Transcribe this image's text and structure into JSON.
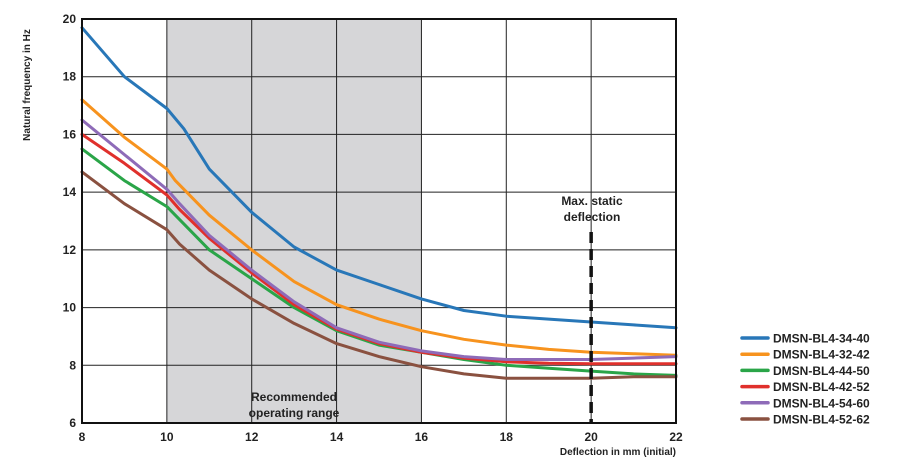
{
  "chart_data": {
    "type": "line",
    "title": "",
    "xlabel": "Deflection in mm (initial)",
    "ylabel": "Natural frequency in Hz",
    "xlim": [
      8,
      22
    ],
    "ylim": [
      6,
      20
    ],
    "x_ticks": [
      8,
      10,
      12,
      14,
      16,
      18,
      20,
      22
    ],
    "y_ticks": [
      6,
      8,
      10,
      12,
      14,
      16,
      18,
      20
    ],
    "x_tick_labels": [
      "8",
      "10",
      "12",
      "14",
      "16",
      "18",
      "20",
      "22"
    ],
    "y_tick_labels": [
      "6",
      "8",
      "10",
      "12",
      "14",
      "16",
      "18",
      "20"
    ],
    "grid": true,
    "legend_position": "bottom-right, outside plot",
    "shaded_region": {
      "x_range": [
        10,
        16
      ],
      "label_lines": [
        "Recommended",
        "operating range"
      ],
      "color": "#d6d6d8"
    },
    "vertical_marker": {
      "x": 20,
      "label_lines": [
        "Max. static",
        "deflection"
      ],
      "style": "dashed",
      "color": "#111111"
    },
    "series": [
      {
        "name": "DMSN-BL4-34-40",
        "color": "#2877b8",
        "x": [
          8,
          9,
          10,
          10.4,
          11,
          12,
          13,
          14,
          15,
          16,
          17,
          18,
          19,
          20,
          21,
          22
        ],
        "y": [
          19.7,
          18,
          16.9,
          16.2,
          14.8,
          13.3,
          12.1,
          11.3,
          10.8,
          10.3,
          9.9,
          9.7,
          9.6,
          9.5,
          9.4,
          9.3
        ]
      },
      {
        "name": "DMSN-BL4-32-42",
        "color": "#f7931e",
        "x": [
          8,
          9,
          10,
          10.2,
          11,
          12,
          13,
          14,
          15,
          16,
          17,
          18,
          19,
          20,
          21,
          22
        ],
        "y": [
          17.2,
          15.9,
          14.8,
          14.4,
          13.2,
          12.0,
          10.9,
          10.1,
          9.6,
          9.2,
          8.9,
          8.7,
          8.55,
          8.45,
          8.4,
          8.35
        ]
      },
      {
        "name": "DMSN-BL4-44-50",
        "color": "#2aa548",
        "x": [
          8,
          9,
          10,
          10.2,
          11,
          12,
          13,
          14,
          15,
          16,
          17,
          18,
          19,
          20,
          21,
          22
        ],
        "y": [
          15.5,
          14.4,
          13.5,
          13.2,
          12.0,
          11.0,
          10.0,
          9.2,
          8.7,
          8.45,
          8.2,
          8.0,
          7.9,
          7.8,
          7.7,
          7.65
        ]
      },
      {
        "name": "DMSN-BL4-42-52",
        "color": "#e0302c",
        "x": [
          8,
          9,
          10,
          10.3,
          11,
          12,
          13,
          14,
          15,
          16,
          17,
          18,
          19,
          20,
          21,
          22
        ],
        "y": [
          16.0,
          15.0,
          13.9,
          13.4,
          12.4,
          11.2,
          10.1,
          9.25,
          8.75,
          8.45,
          8.25,
          8.12,
          8.07,
          8.05,
          8.05,
          8.05
        ]
      },
      {
        "name": "DMSN-BL4-54-60",
        "color": "#8e6bb8",
        "x": [
          8,
          9,
          10,
          10.3,
          11,
          12,
          13,
          14,
          15,
          16,
          17,
          18,
          19,
          20,
          21,
          22
        ],
        "y": [
          16.5,
          15.3,
          14.1,
          13.6,
          12.5,
          11.3,
          10.2,
          9.3,
          8.8,
          8.5,
          8.3,
          8.2,
          8.2,
          8.2,
          8.25,
          8.3
        ]
      },
      {
        "name": "DMSN-BL4-52-62",
        "color": "#8a5140",
        "x": [
          8,
          9,
          10,
          10.3,
          11,
          12,
          13,
          14,
          15,
          16,
          17,
          18,
          19,
          20,
          21,
          22
        ],
        "y": [
          14.7,
          13.6,
          12.7,
          12.2,
          11.3,
          10.3,
          9.45,
          8.75,
          8.3,
          7.95,
          7.7,
          7.55,
          7.55,
          7.55,
          7.6,
          7.6
        ]
      }
    ]
  }
}
